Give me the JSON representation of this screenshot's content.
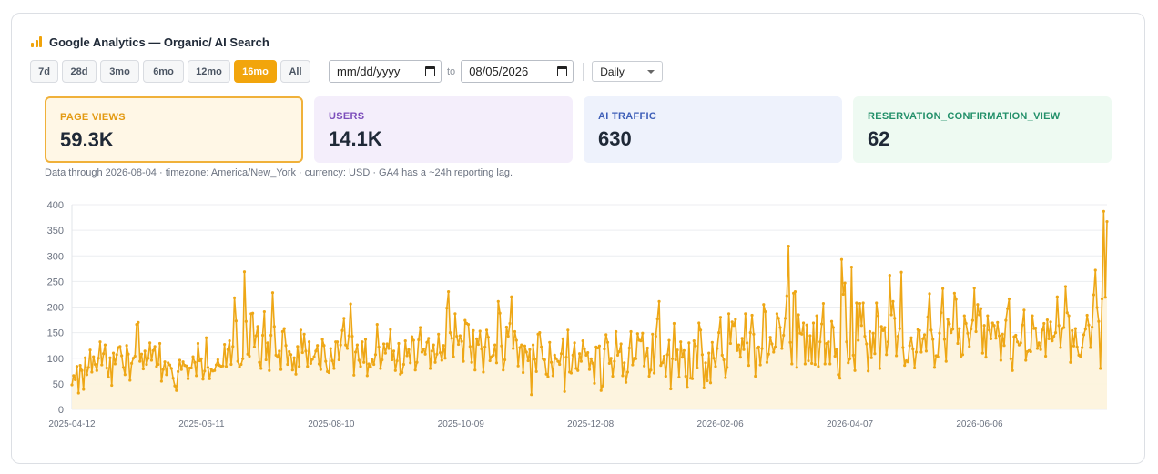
{
  "header": {
    "title": "Google Analytics — Organic/ AI Search"
  },
  "ranges": [
    "7d",
    "28d",
    "3mo",
    "6mo",
    "12mo",
    "16mo",
    "All"
  ],
  "active_range": "16mo",
  "date_from": {
    "value": "mm/dd/yyyy"
  },
  "date_to_label": "to",
  "date_to": {
    "value": "08/05/2026"
  },
  "granularity": {
    "selected": "Daily"
  },
  "kpis": [
    {
      "label": "PAGE VIEWS",
      "value": "59.3K",
      "bg": "#fff7e6",
      "border": "#f0b13a",
      "color": "#e39a12"
    },
    {
      "label": "USERS",
      "value": "14.1K",
      "bg": "#f4eefb",
      "border": "#f4eefb",
      "color": "#7c4dbb"
    },
    {
      "label": "AI TRAFFIC",
      "value": "630",
      "bg": "#eef2fc",
      "border": "#eef2fc",
      "color": "#3e5fb8"
    },
    {
      "label": "RESERVATION_CONFIRMATION_VIEW",
      "value": "62",
      "bg": "#eefaf2",
      "border": "#eefaf2",
      "color": "#23906a"
    }
  ],
  "note": "Data through 2026-08-04 · timezone: America/New_York · currency: USD · GA4 has a ~24h reporting lag.",
  "colors": {
    "accent": "#f2a50c",
    "line": "#eea716",
    "fill": "#fdf3dc"
  },
  "chart_data": {
    "type": "area",
    "series": [
      {
        "x_start": "2025-04-12",
        "x_end": "2026-08-04",
        "values": [
          48,
          66,
          58,
          84,
          32,
          86,
          76,
          39,
          101,
          68,
          82,
          116,
          73,
          103,
          88,
          76,
          100,
          132,
          87,
          109,
          126,
          81,
          63,
          101,
          47,
          110,
          89,
          107,
          121,
          123,
          105,
          82,
          68,
          125,
          108,
          57,
          90,
          100,
          104,
          166,
          170,
          94,
          108,
          79,
          114,
          88,
          100,
          130,
          96,
          115,
          123,
          84,
          88,
          129,
          55,
          78,
          93,
          68,
          91,
          87,
          80,
          61,
          46,
          37,
          74,
          96,
          78,
          93,
          86,
          85,
          60,
          81,
          81,
          103,
          92,
          66,
          129,
          95,
          99,
          59,
          75,
          140,
          82,
          60,
          79,
          75,
          76,
          87,
          97,
          86,
          84,
          85,
          127,
          84,
          117,
          134,
          88,
          123,
          218,
          173,
          94,
          83,
          88,
          99,
          269,
          172,
          108,
          104,
          187,
          188,
          122,
          144,
          162,
          92,
          80,
          145,
          191,
          97,
          130,
          76,
          145,
          228,
          162,
          106,
          102,
          114,
          78,
          152,
          158,
          125,
          88,
          113,
          107,
          77,
          101,
          69,
          123,
          84,
          155,
          111,
          147,
          114,
          84,
          132,
          90,
          98,
          103,
          114,
          125,
          89,
          78,
          137,
          125,
          94,
          74,
          72,
          119,
          95,
          80,
          132,
          132,
          97,
          126,
          154,
          178,
          126,
          119,
          144,
          206,
          143,
          67,
          112,
          126,
          96,
          84,
          132,
          92,
          137,
          66,
          89,
          83,
          97,
          88,
          107,
          166,
          122,
          80,
          97,
          128,
          110,
          128,
          119,
          156,
          97,
          114,
          76,
          95,
          129,
          69,
          72,
          88,
          134,
          105,
          117,
          91,
          142,
          135,
          77,
          92,
          136,
          160,
          112,
          118,
          108,
          131,
          139,
          80,
          114,
          126,
          92,
          108,
          147,
          111,
          96,
          125,
          100,
          198,
          230,
          150,
          139,
          103,
          187,
          143,
          127,
          144,
          133,
          94,
          174,
          168,
          166,
          123,
          92,
          154,
          77,
          138,
          127,
          153,
          118,
          73,
          122,
          155,
          141,
          95,
          103,
          106,
          126,
          91,
          211,
          188,
          124,
          77,
          97,
          161,
          143,
          168,
          220,
          119,
          152,
          135,
          85,
          121,
          126,
          72,
          124,
          112,
          95,
          117,
          29,
          126,
          98,
          74,
          147,
          150,
          122,
          99,
          97,
          69,
          64,
          131,
          92,
          66,
          106,
          99,
          94,
          88,
          109,
          138,
          35,
          102,
          155,
          73,
          71,
          106,
          130,
          80,
          76,
          109,
          94,
          134,
          118,
          106,
          111,
          78,
          99,
          90,
          51,
          122,
          120,
          124,
          37,
          46,
          118,
          146,
          131,
          90,
          100,
          65,
          94,
          152,
          106,
          113,
          128,
          66,
          91,
          53,
          73,
          120,
          152,
          87,
          100,
          99,
          148,
          135,
          134,
          149,
          85,
          105,
          120,
          65,
          77,
          147,
          71,
          143,
          177,
          211,
          86,
          91,
          104,
          65,
          107,
          135,
          40,
          99,
          168,
          97,
          116,
          63,
          132,
          102,
          115,
          65,
          43,
          130,
          61,
          60,
          134,
          124,
          81,
          169,
          155,
          107,
          42,
          91,
          56,
          110,
          52,
          131,
          100,
          84,
          119,
          150,
          180,
          106,
          97,
          62,
          82,
          187,
          129,
          171,
          164,
          176,
          115,
          126,
          102,
          139,
          117,
          187,
          130,
          86,
          150,
          184,
          147,
          65,
          120,
          122,
          87,
          119,
          205,
          191,
          92,
          108,
          141,
          128,
          112,
          122,
          187,
          178,
          160,
          119,
          145,
          178,
          222,
          319,
          131,
          89,
          227,
          230,
          82,
          185,
          149,
          147,
          169,
          89,
          165,
          95,
          144,
          90,
          169,
          88,
          183,
          84,
          132,
          167,
          207,
          89,
          129,
          132,
          89,
          172,
          160,
          104,
          117,
          68,
          61,
          293,
          225,
          247,
          132,
          91,
          99,
          278,
          106,
          76,
          208,
          135,
          207,
          164,
          208,
          143,
          128,
          75,
          152,
          101,
          149,
          109,
          208,
          183,
          80,
          162,
          154,
          160,
          107,
          132,
          262,
          185,
          211,
          178,
          105,
          143,
          158,
          268,
          121,
          86,
          95,
          93,
          125,
          140,
          118,
          81,
          112,
          156,
          154,
          112,
          138,
          146,
          114,
          181,
          226,
          155,
          137,
          82,
          105,
          103,
          149,
          189,
          236,
          137,
          94,
          176,
          167,
          150,
          157,
          227,
          215,
          129,
          158,
          104,
          107,
          183,
          168,
          149,
          123,
          157,
          174,
          237,
          152,
          205,
          185,
          197,
          110,
          164,
          102,
          183,
          155,
          138,
          169,
          164,
          139,
          170,
          144,
          96,
          147,
          125,
          174,
          197,
          216,
          99,
          76,
          142,
          145,
          132,
          126,
          130,
          165,
          194,
          96,
          113,
          115,
          113,
          183,
          158,
          159,
          119,
          130,
          117,
          155,
          168,
          104,
          175,
          138,
          171,
          134,
          143,
          150,
          220,
          164,
          121,
          158,
          160,
          240,
          189,
          183,
          92,
          154,
          124,
          158,
          122,
          106,
          103,
          121,
          146,
          157,
          184,
          165,
          121,
          161,
          224,
          272,
          199,
          172,
          80,
          216,
          387,
          219,
          367
        ]
      }
    ],
    "ylim": [
      0,
      400
    ],
    "yticks": [
      0,
      50,
      100,
      150,
      200,
      250,
      300,
      350,
      400
    ],
    "xticks": [
      "2025-04-12",
      "2025-06-11",
      "2025-08-10",
      "2025-10-09",
      "2025-12-08",
      "2026-02-06",
      "2026-04-07",
      "2026-06-06"
    ],
    "grid": true
  }
}
